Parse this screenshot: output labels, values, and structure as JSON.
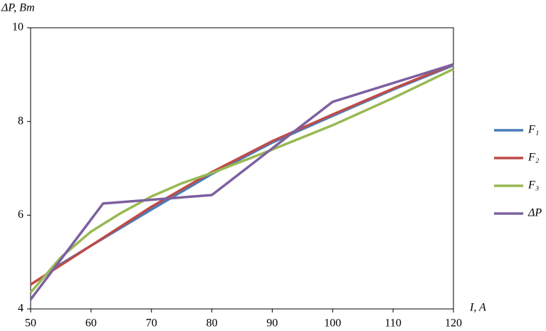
{
  "chart_data": {
    "type": "line",
    "y_label": "ΔP, Вт",
    "x_label": "I, A",
    "xlim": [
      50,
      120
    ],
    "xticks": [
      50,
      60,
      70,
      80,
      90,
      100,
      110,
      120
    ],
    "ylim": [
      4,
      10
    ],
    "yticks": [
      4,
      6,
      8,
      10
    ],
    "legend": "right",
    "series": [
      {
        "name": "F₁",
        "color": "#4a7ebb",
        "x": [
          53,
          60,
          70,
          80,
          90,
          100,
          110,
          120
        ],
        "values": [
          4.8,
          5.35,
          6.12,
          6.88,
          7.55,
          8.12,
          8.68,
          9.2
        ]
      },
      {
        "name": "F₂",
        "color": "#be4b48",
        "x": [
          50,
          60,
          70,
          80,
          90,
          100,
          110,
          120
        ],
        "values": [
          4.52,
          5.35,
          6.18,
          6.92,
          7.58,
          8.15,
          8.7,
          9.22
        ]
      },
      {
        "name": "F₃",
        "color": "#98b954",
        "x": [
          50,
          55,
          60,
          65,
          70,
          75,
          80,
          90,
          100,
          110,
          120
        ],
        "values": [
          4.35,
          5.1,
          5.65,
          6.05,
          6.4,
          6.68,
          6.9,
          7.4,
          7.92,
          8.5,
          9.12
        ]
      },
      {
        "name": "ΔP",
        "color": "#7d60a0",
        "x": [
          50,
          62,
          80,
          100,
          120
        ],
        "values": [
          4.2,
          6.25,
          6.43,
          8.42,
          9.22
        ]
      }
    ]
  }
}
